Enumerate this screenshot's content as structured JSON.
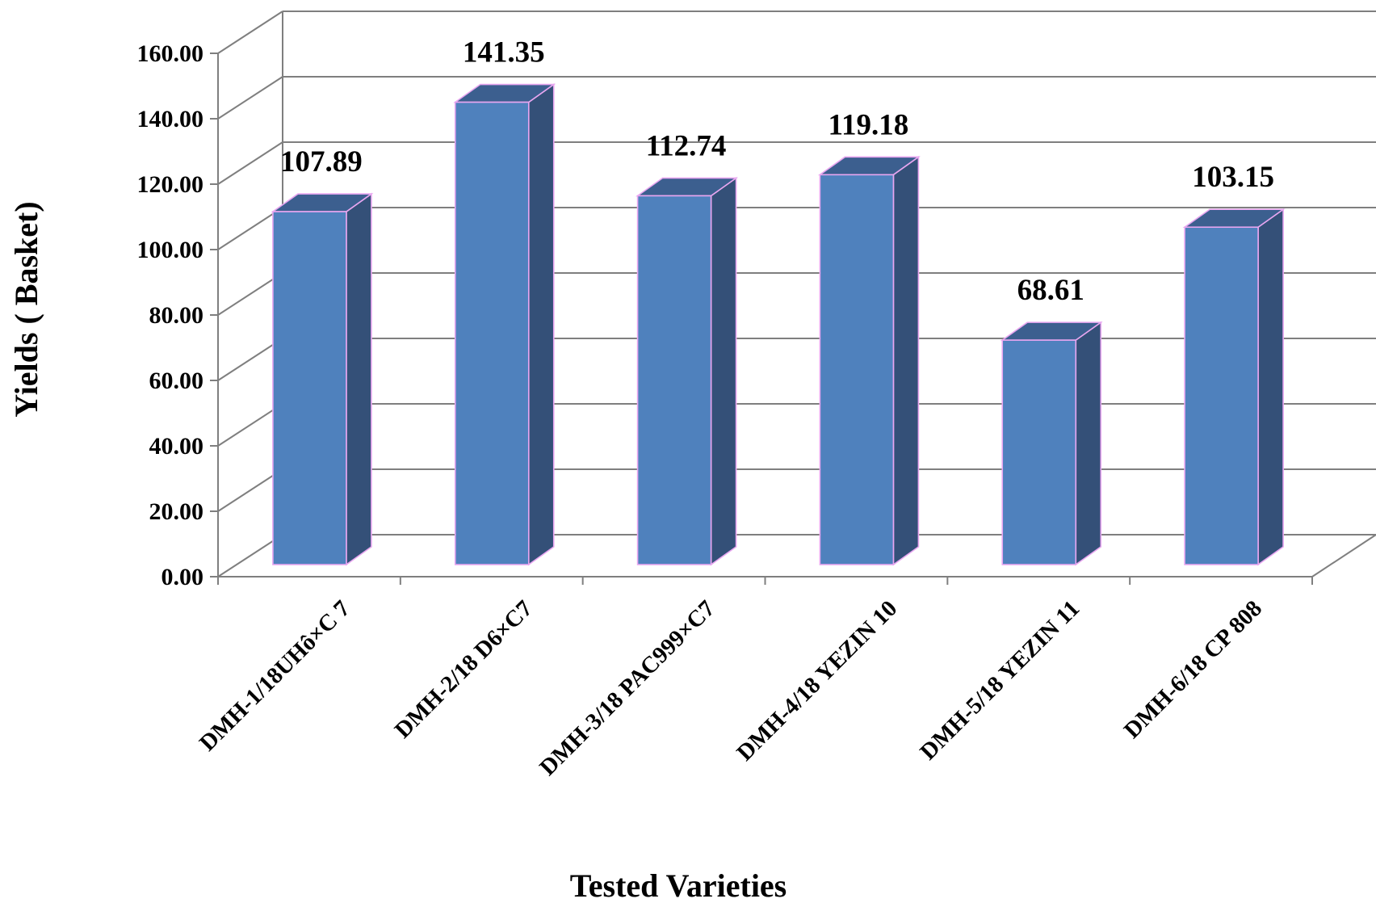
{
  "chart_data": {
    "type": "bar",
    "title": "",
    "xlabel": "Tested Varieties",
    "ylabel": "Yields ( Basket)",
    "ylim": [
      0,
      160
    ],
    "ytick_step": 20,
    "ytick_labels": [
      "0.00",
      "20.00",
      "40.00",
      "60.00",
      "80.00",
      "100.00",
      "120.00",
      "140.00",
      "160.00"
    ],
    "categories": [
      "DMH-1/18UHô×C 7",
      "DMH-2/18 D6×C7",
      "DMH-3/18 PAC999×C7",
      "DMH-4/18 YEZIN 10",
      "DMH-5/18 YEZIN 11",
      "DMH-6/18 CP  808"
    ],
    "values": [
      107.89,
      141.35,
      112.74,
      119.18,
      68.61,
      103.15
    ],
    "data_labels": [
      "107.89",
      "141.35",
      "112.74",
      "119.18",
      "68.61",
      "103.15"
    ],
    "grid": true,
    "legend": "none",
    "colors": {
      "bar_front": "#4F81BD",
      "bar_side": "#345078",
      "bar_top": "#3C5F8F",
      "bar_edge": "#E8A6F0",
      "grid": "#7F7F7F",
      "axis": "#7F7F7F"
    }
  }
}
